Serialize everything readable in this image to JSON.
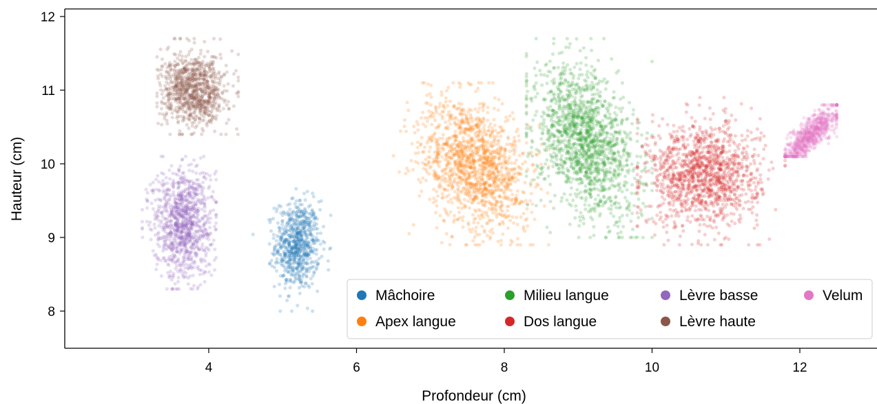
{
  "chart_data": {
    "type": "scatter",
    "xlabel": "Profondeur (cm)",
    "ylabel": "Hauteur (cm)",
    "xlim": [
      2.1,
      12.5
    ],
    "ylim": [
      7.5,
      12.1
    ],
    "xticks": [
      "4",
      "6",
      "8",
      "10",
      "12"
    ],
    "yticks": [
      "8",
      "9",
      "10",
      "11",
      "12"
    ],
    "grid": false,
    "legend_position": "bottom-right",
    "legend_columns": 4,
    "series": [
      {
        "name": "Mâchoire",
        "color": "#1f77b4",
        "center": [
          5.2,
          8.9
        ],
        "spread": [
          0.15,
          0.3
        ],
        "point_count": 700,
        "x_range": [
          4.6,
          5.7
        ],
        "y_range": [
          8.0,
          9.7
        ]
      },
      {
        "name": "Apex langue",
        "color": "#ff7f0e",
        "center": [
          7.6,
          10.0
        ],
        "spread": [
          0.35,
          0.45
        ],
        "point_count": 1400,
        "x_range": [
          6.5,
          8.6
        ],
        "y_range": [
          8.9,
          11.1
        ]
      },
      {
        "name": "Milieu langue",
        "color": "#2ca02c",
        "center": [
          9.1,
          10.3
        ],
        "spread": [
          0.33,
          0.5
        ],
        "point_count": 1500,
        "x_range": [
          8.3,
          10.0
        ],
        "y_range": [
          9.0,
          11.7
        ]
      },
      {
        "name": "Dos langue",
        "color": "#d62728",
        "center": [
          10.7,
          9.85
        ],
        "spread": [
          0.38,
          0.35
        ],
        "point_count": 1300,
        "x_range": [
          9.8,
          11.8
        ],
        "y_range": [
          8.9,
          10.9
        ]
      },
      {
        "name": "Lèvre basse",
        "color": "#9467bd",
        "center": [
          3.65,
          9.2
        ],
        "spread": [
          0.2,
          0.38
        ],
        "point_count": 1000,
        "x_range": [
          3.1,
          4.1
        ],
        "y_range": [
          8.3,
          10.1
        ]
      },
      {
        "name": "Lèvre haute",
        "color": "#8c564b",
        "center": [
          3.8,
          11.0
        ],
        "spread": [
          0.22,
          0.25
        ],
        "point_count": 900,
        "x_range": [
          3.3,
          4.4
        ],
        "y_range": [
          10.4,
          11.7
        ]
      },
      {
        "name": "Velum",
        "color": "#e377c2",
        "center": [
          12.15,
          10.4
        ],
        "spread": [
          0.2,
          0.12
        ],
        "point_count": 700,
        "x_range": [
          11.8,
          12.5
        ],
        "y_range": [
          10.1,
          10.8
        ]
      }
    ]
  }
}
